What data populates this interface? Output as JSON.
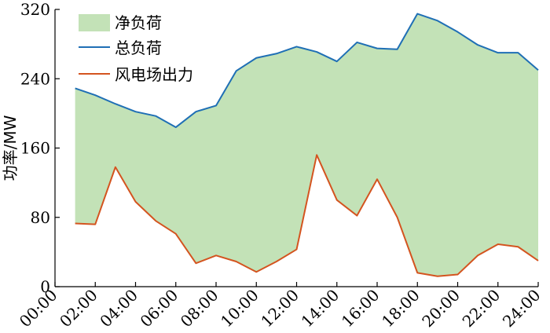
{
  "chart_data": {
    "type": "line",
    "title": "",
    "xlabel": "",
    "ylabel": "功率/MW",
    "ylim": [
      0,
      320
    ],
    "xlim": [
      0,
      24
    ],
    "yticks": [
      0,
      80,
      160,
      240,
      320
    ],
    "xticks": [
      "00:00",
      "02:00",
      "04:00",
      "06:00",
      "08:00",
      "10:00",
      "12:00",
      "14:00",
      "16:00",
      "18:00",
      "20:00",
      "22:00",
      "24:00"
    ],
    "x": [
      1,
      2,
      3,
      4,
      5,
      6,
      7,
      8,
      9,
      10,
      11,
      12,
      13,
      14,
      15,
      16,
      17,
      18,
      19,
      20,
      21,
      22,
      23,
      24
    ],
    "legend_position": "top-left",
    "grid": false,
    "series": [
      {
        "name": "总负荷",
        "color": "#1f6fb5",
        "values": [
          229,
          221,
          211,
          202,
          197,
          184,
          202,
          209,
          249,
          264,
          269,
          277,
          271,
          260,
          282,
          275,
          274,
          315,
          307,
          294,
          279,
          270,
          270,
          250
        ]
      },
      {
        "name": "风电场出力",
        "color": "#d4541f",
        "values": [
          73,
          72,
          138,
          98,
          76,
          61,
          27,
          36,
          29,
          17,
          29,
          43,
          152,
          100,
          82,
          124,
          80,
          16,
          12,
          14,
          36,
          49,
          46,
          30
        ]
      }
    ],
    "fill": {
      "name": "净负荷",
      "color": "#c3e2b7",
      "between": [
        "总负荷",
        "风电场出力"
      ]
    }
  }
}
